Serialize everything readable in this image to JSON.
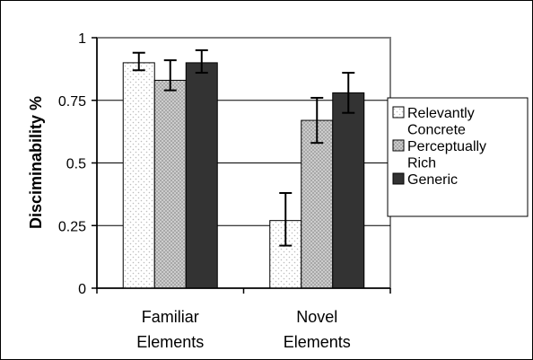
{
  "chart_data": {
    "type": "bar",
    "title": "",
    "xlabel": "",
    "ylabel": "Disciminability %",
    "ylim": [
      0,
      1
    ],
    "yticks": [
      "0",
      "0.25",
      "0.5",
      "0.75",
      "1"
    ],
    "ytick_values": [
      0,
      0.25,
      0.5,
      0.75,
      1
    ],
    "grid": true,
    "legend_position": "right",
    "categories": [
      [
        "Familiar",
        "Elements"
      ],
      [
        "Novel",
        "Elements"
      ]
    ],
    "series": [
      {
        "name_lines": [
          "Relevantly",
          "Concrete"
        ],
        "fill": "dotted-light",
        "values": [
          0.9,
          0.27
        ],
        "error_low": [
          0.87,
          0.17
        ],
        "error_high": [
          0.94,
          0.38
        ]
      },
      {
        "name_lines": [
          "Perceptually",
          "Rich"
        ],
        "fill": "dotted-grey",
        "values": [
          0.83,
          0.67
        ],
        "error_low": [
          0.79,
          0.58
        ],
        "error_high": [
          0.91,
          0.76
        ]
      },
      {
        "name_lines": [
          "Generic"
        ],
        "fill": "dark",
        "values": [
          0.9,
          0.78
        ],
        "error_low": [
          0.86,
          0.7
        ],
        "error_high": [
          0.95,
          0.86
        ]
      }
    ],
    "colors": {
      "dark": "#333333",
      "dotted_light_bg": "#ffffff",
      "dotted_light_dot": "#cccccc",
      "dotted_grey_bg": "#b0b0b0",
      "dotted_grey_dot": "#e8e8e8",
      "grid": "#000000",
      "plot_border": "#808080"
    }
  }
}
